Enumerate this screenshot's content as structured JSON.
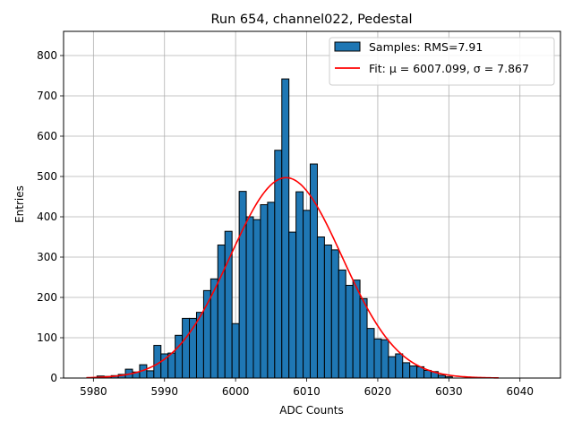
{
  "chart_data": {
    "type": "bar",
    "title": "Run 654, channel022, Pedestal",
    "xlabel": "ADC Counts",
    "ylabel": "Entries",
    "xlim": [
      5975.8,
      6045.7
    ],
    "ylim": [
      0,
      860
    ],
    "grid": true,
    "legend_position": "top-right",
    "x_ticks": [
      5980,
      5990,
      6000,
      6010,
      6020,
      6030,
      6040
    ],
    "y_ticks": [
      0,
      100,
      200,
      300,
      400,
      500,
      600,
      700,
      800
    ],
    "bin_width": 1,
    "series": [
      {
        "name": "Samples: RMS=7.91",
        "kind": "histogram",
        "color": "#1f77b4",
        "edgecolor": "#000000",
        "bins": [
          5981,
          5982,
          5983,
          5984,
          5985,
          5986,
          5987,
          5988,
          5989,
          5990,
          5991,
          5992,
          5993,
          5994,
          5995,
          5996,
          5997,
          5998,
          5999,
          6000,
          6001,
          6002,
          6003,
          6004,
          6005,
          6006,
          6007,
          6008,
          6009,
          6010,
          6011,
          6012,
          6013,
          6014,
          6015,
          6016,
          6017,
          6018,
          6019,
          6020,
          6021,
          6022,
          6023,
          6024,
          6025,
          6026,
          6027,
          6028,
          6029,
          6030
        ],
        "values": [
          5,
          4,
          6,
          9,
          22,
          15,
          33,
          18,
          81,
          60,
          62,
          106,
          148,
          148,
          163,
          217,
          246,
          330,
          364,
          135,
          463,
          400,
          393,
          430,
          436,
          565,
          742,
          362,
          462,
          416,
          531,
          350,
          330,
          318,
          268,
          230,
          243,
          197,
          123,
          97,
          95,
          53,
          60,
          38,
          30,
          28,
          19,
          16,
          7,
          3
        ]
      },
      {
        "name": "Fit: μ = 6007.099, σ = 7.867",
        "kind": "gaussian",
        "color": "#ff0000",
        "mu": 6007.099,
        "sigma": 7.867,
        "amplitude": 497,
        "x_range": [
          5979,
          6037
        ]
      }
    ]
  }
}
